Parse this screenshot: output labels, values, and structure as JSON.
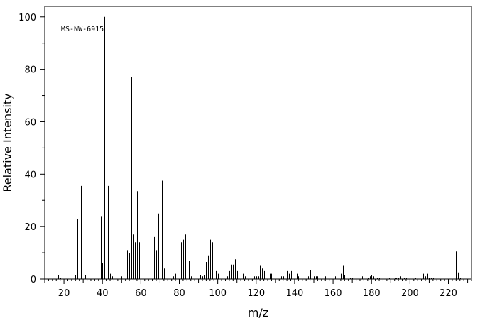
{
  "chart_data": {
    "type": "bar",
    "title": "",
    "annotation": "MS-NW-6915",
    "xlabel": "m/z",
    "ylabel": "Relative Intensity",
    "xlim": [
      10,
      232
    ],
    "ylim": [
      0,
      104
    ],
    "x_major_ticks": [
      20,
      40,
      60,
      80,
      100,
      120,
      140,
      160,
      180,
      200,
      220
    ],
    "y_major_ticks": [
      0,
      20,
      40,
      60,
      80,
      100
    ],
    "grid": false,
    "legend": "none",
    "series": [
      {
        "x": [
          15,
          17,
          18,
          19,
          26,
          27,
          28,
          29,
          31,
          39,
          40,
          41,
          42,
          43,
          44,
          45,
          50,
          51,
          52,
          53,
          54,
          55,
          56,
          57,
          58,
          59,
          60,
          65,
          66,
          67,
          68,
          69,
          70,
          71,
          72,
          77,
          78,
          79,
          80,
          81,
          82,
          83,
          84,
          85,
          86,
          91,
          92,
          93,
          94,
          95,
          96,
          97,
          98,
          99,
          100,
          105,
          106,
          107,
          108,
          109,
          110,
          111,
          112,
          113,
          114,
          119,
          120,
          121,
          122,
          123,
          124,
          125,
          126,
          127,
          128,
          133,
          134,
          135,
          136,
          137,
          138,
          139,
          140,
          141,
          142,
          147,
          148,
          149,
          150,
          151,
          152,
          153,
          154,
          155,
          156,
          161,
          162,
          163,
          164,
          165,
          166,
          167,
          168,
          169,
          170,
          175,
          176,
          177,
          178,
          179,
          180,
          181,
          182,
          183,
          184,
          189,
          190,
          191,
          192,
          193,
          194,
          195,
          196,
          197,
          198,
          203,
          204,
          205,
          206,
          207,
          208,
          209,
          210,
          211,
          212,
          224,
          225,
          226
        ],
        "values": [
          1,
          1.5,
          0.5,
          1,
          1.5,
          23,
          12,
          35.5,
          1.5,
          24,
          6,
          100,
          26,
          35.5,
          2,
          1,
          1,
          2,
          2,
          11,
          10,
          77,
          17,
          14,
          33.5,
          14,
          1,
          2,
          2,
          16,
          11,
          25,
          11,
          37.5,
          4,
          1,
          2,
          6,
          4,
          14,
          15,
          17,
          12,
          7,
          1,
          1.5,
          1,
          1.5,
          6.5,
          9,
          15,
          14,
          13.5,
          3,
          2,
          1,
          3,
          5.5,
          5.5,
          7.5,
          3,
          10,
          3,
          2,
          1,
          1,
          1,
          1,
          5,
          4,
          3,
          6,
          10,
          2,
          2,
          1,
          1,
          6,
          3,
          2,
          3,
          2,
          1.5,
          2,
          1,
          1,
          3.5,
          2,
          1,
          1,
          1,
          1,
          1,
          0.5,
          1,
          1,
          1.5,
          3,
          2,
          5,
          1.5,
          1,
          1,
          0.5,
          0.5,
          1,
          1.5,
          1,
          0.5,
          1,
          1.5,
          1,
          0.5,
          0.5,
          0.5,
          0.5,
          1,
          0.5,
          0.5,
          0.5,
          0.5,
          1,
          0.5,
          0.5,
          0.5,
          0.5,
          1,
          0.5,
          3.5,
          2,
          1,
          2,
          0.5,
          0.5,
          0.5,
          10.5,
          2.5,
          0.5
        ]
      }
    ]
  }
}
